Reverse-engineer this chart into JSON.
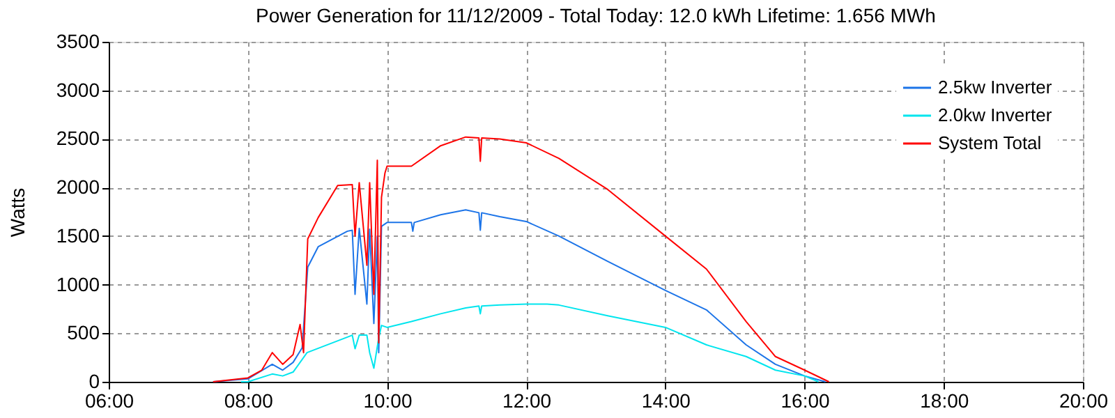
{
  "chart_data": {
    "type": "line",
    "title": "Power Generation for 11/12/2009 - Total Today: 12.0 kWh   Lifetime: 1.656 MWh",
    "ylabel": "Watts",
    "xlim": [
      6,
      20
    ],
    "xticks": [
      {
        "value": 6,
        "label": "06:00"
      },
      {
        "value": 8,
        "label": "08:00"
      },
      {
        "value": 10,
        "label": "10:00"
      },
      {
        "value": 12,
        "label": "12:00"
      },
      {
        "value": 14,
        "label": "14:00"
      },
      {
        "value": 16,
        "label": "16:00"
      },
      {
        "value": 18,
        "label": "18:00"
      },
      {
        "value": 20,
        "label": "20:00"
      }
    ],
    "ylim": [
      0,
      3500
    ],
    "yticks": [
      0,
      500,
      1000,
      1500,
      2000,
      2500,
      3000,
      3500
    ],
    "grid": true,
    "legend": "top right",
    "line_style": "solid",
    "marker": "none",
    "series": [
      {
        "name": "2.5kw Inverter",
        "color": "#1c74e8",
        "x": [
          7.5,
          8.0,
          8.35,
          8.5,
          8.65,
          8.78,
          8.86,
          9.01,
          9.43,
          9.5,
          9.54,
          9.6,
          9.71,
          9.75,
          9.81,
          9.86,
          9.88,
          9.92,
          10.0,
          10.35,
          10.37,
          10.39,
          10.77,
          11.13,
          11.32,
          11.34,
          11.36,
          11.62,
          12.0,
          12.47,
          13.17,
          14.0,
          14.59,
          15.16,
          15.58,
          16.0,
          16.3
        ],
        "values": [
          0,
          30,
          180,
          120,
          200,
          350,
          1180,
          1390,
          1550,
          1560,
          900,
          1580,
          800,
          1570,
          600,
          1500,
          300,
          1600,
          1640,
          1640,
          1550,
          1640,
          1720,
          1770,
          1740,
          1560,
          1740,
          1700,
          1650,
          1500,
          1240,
          940,
          740,
          380,
          180,
          60,
          0
        ]
      },
      {
        "name": "2.0kw Inverter",
        "color": "#00e5ee",
        "x": [
          7.9,
          8.0,
          8.35,
          8.5,
          8.65,
          8.85,
          9.43,
          9.5,
          9.54,
          9.6,
          9.71,
          9.75,
          9.81,
          9.88,
          9.92,
          10.0,
          10.35,
          10.77,
          11.13,
          11.32,
          11.34,
          11.36,
          11.62,
          12.0,
          12.3,
          12.47,
          13.17,
          14.0,
          14.59,
          15.16,
          15.58,
          16.0,
          16.2
        ],
        "values": [
          0,
          0,
          80,
          60,
          100,
          300,
          460,
          480,
          340,
          480,
          480,
          300,
          140,
          450,
          580,
          560,
          620,
          700,
          760,
          780,
          700,
          780,
          790,
          800,
          800,
          790,
          680,
          560,
          380,
          260,
          120,
          60,
          0
        ]
      },
      {
        "name": "System Total",
        "color": "#ff0000",
        "x": [
          7.5,
          8.0,
          8.2,
          8.35,
          8.5,
          8.65,
          8.75,
          8.8,
          8.86,
          9.01,
          9.29,
          9.5,
          9.54,
          9.6,
          9.71,
          9.75,
          9.81,
          9.86,
          9.88,
          9.92,
          9.97,
          10.0,
          10.35,
          10.77,
          11.13,
          11.32,
          11.34,
          11.36,
          11.62,
          12.0,
          12.47,
          13.17,
          14.0,
          14.59,
          15.16,
          15.58,
          16.0,
          16.35
        ],
        "values": [
          0,
          40,
          120,
          300,
          180,
          280,
          590,
          300,
          1470,
          1690,
          2020,
          2030,
          1500,
          2050,
          1200,
          2050,
          900,
          2280,
          400,
          1900,
          2150,
          2220,
          2220,
          2430,
          2520,
          2510,
          2270,
          2510,
          2500,
          2460,
          2300,
          1980,
          1500,
          1160,
          620,
          260,
          120,
          0
        ]
      }
    ]
  }
}
